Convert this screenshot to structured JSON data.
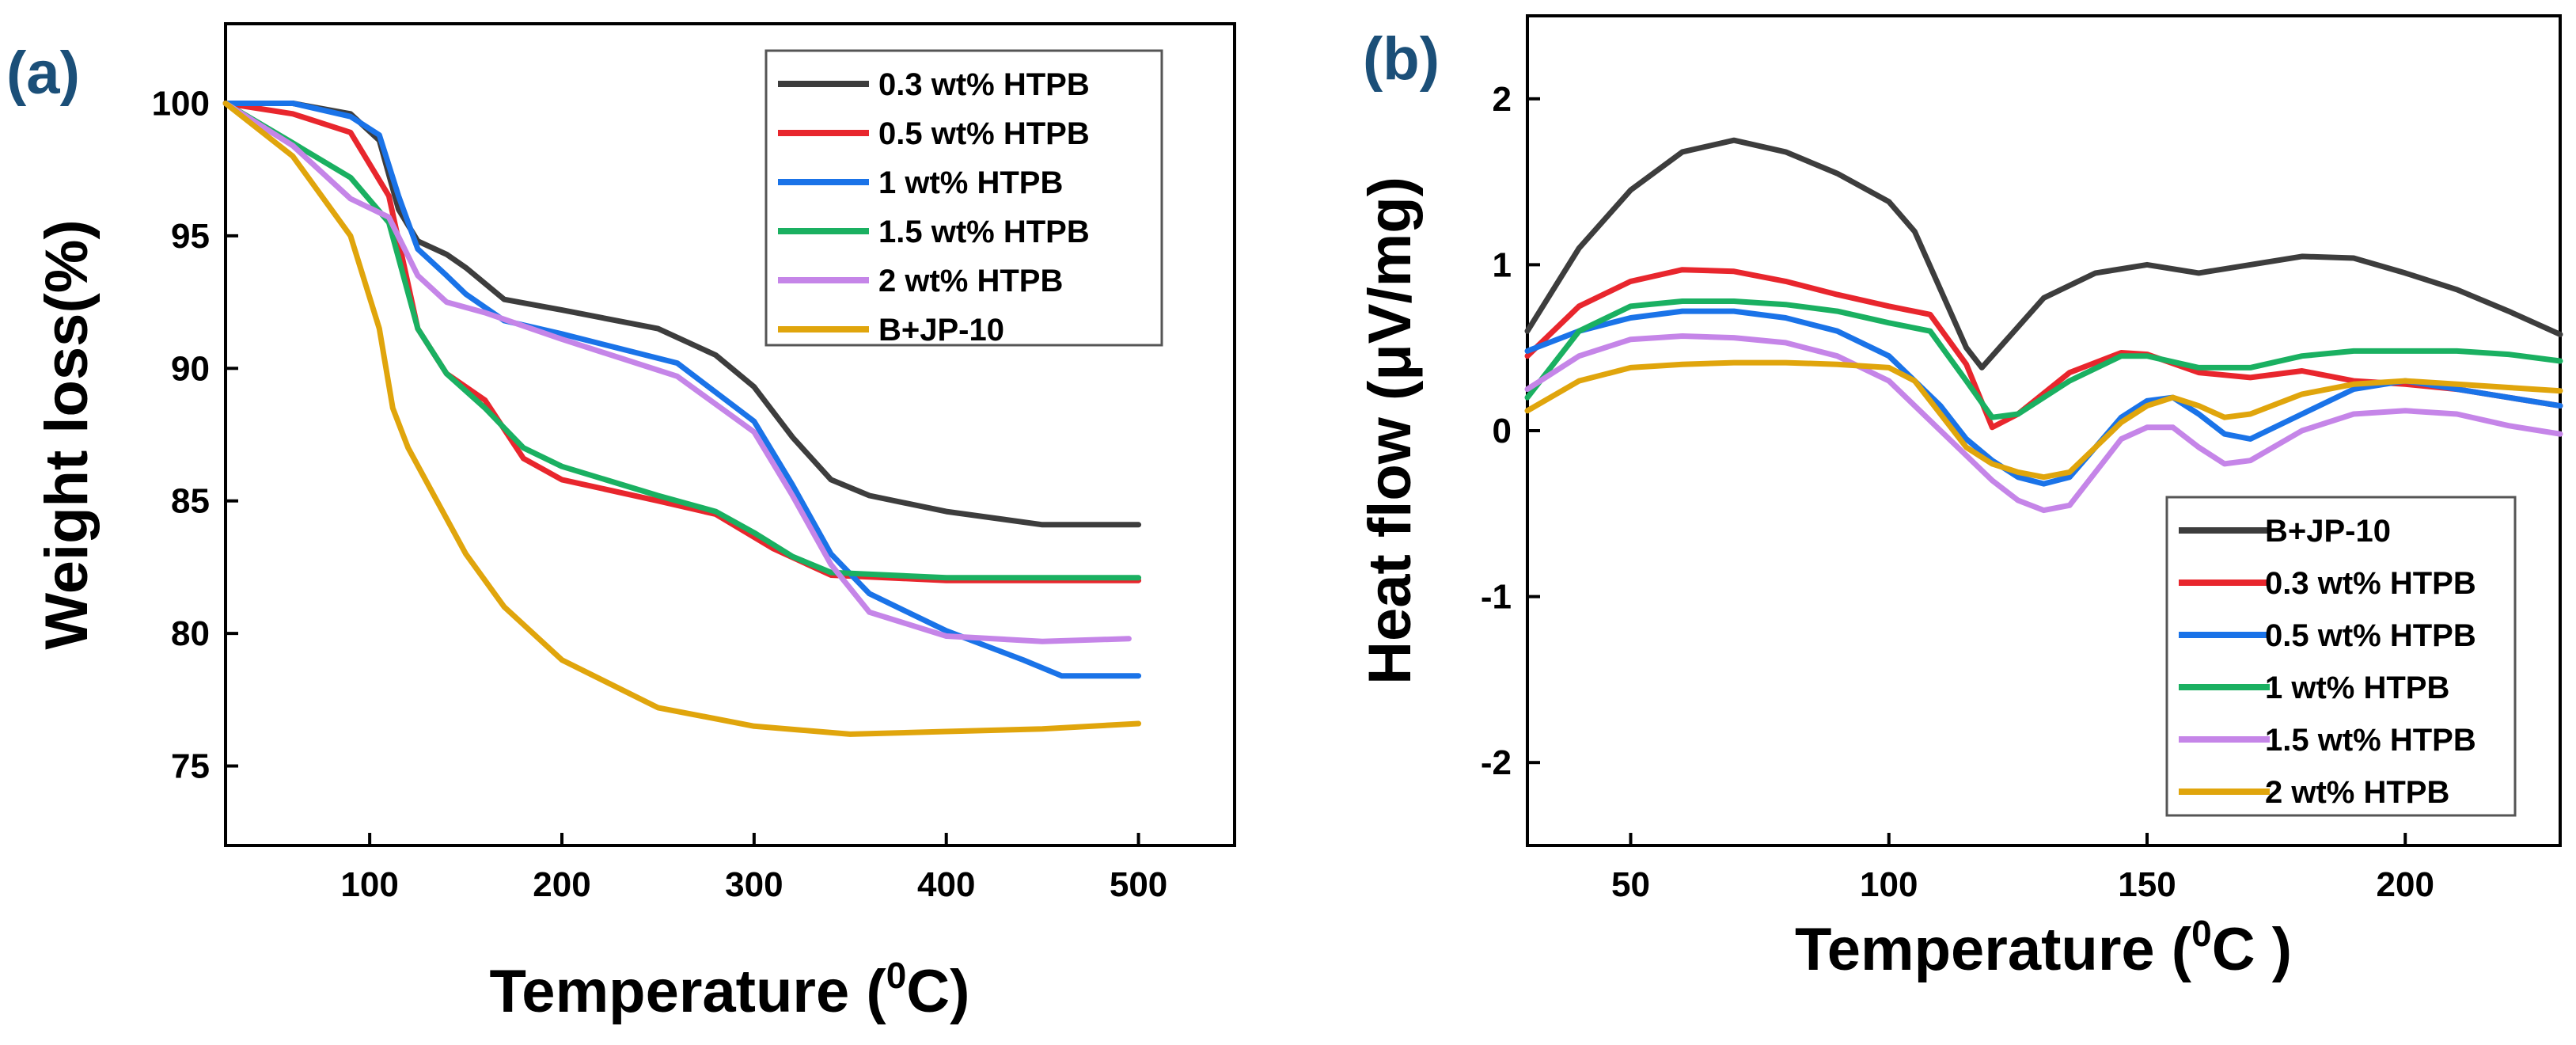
{
  "chart_data": [
    {
      "panel": "(a)",
      "type": "line",
      "xlabel_main": "Temperature (",
      "xlabel_sup": "0",
      "xlabel_end": "C)",
      "ylabel": "Weight loss(%)",
      "xlim": [
        25,
        550
      ],
      "ylim": [
        72,
        103
      ],
      "xticks": [
        100,
        200,
        300,
        400,
        500
      ],
      "yticks": [
        75,
        80,
        85,
        90,
        95,
        100
      ],
      "legend_position": "top-right",
      "series": [
        {
          "name": "0.3 wt% HTPB",
          "color": "#3d3d3d",
          "x": [
            25,
            60,
            90,
            105,
            115,
            125,
            140,
            150,
            170,
            200,
            250,
            280,
            300,
            320,
            340,
            360,
            400,
            450,
            500
          ],
          "y": [
            100,
            100,
            99.6,
            98.6,
            96,
            94.8,
            94.3,
            93.8,
            92.6,
            92.2,
            91.5,
            90.5,
            89.3,
            87.4,
            85.8,
            85.2,
            84.6,
            84.1,
            84.1
          ]
        },
        {
          "name": "0.5 wt% HTPB",
          "color": "#e8262d",
          "x": [
            25,
            60,
            90,
            110,
            125,
            140,
            160,
            180,
            200,
            250,
            280,
            310,
            340,
            400,
            450,
            500
          ],
          "y": [
            100,
            99.6,
            98.9,
            96.5,
            91.5,
            89.8,
            88.8,
            86.6,
            85.8,
            85,
            84.5,
            83.2,
            82.2,
            82,
            82,
            82
          ]
        },
        {
          "name": "1 wt% HTPB",
          "color": "#1a73e8",
          "x": [
            25,
            60,
            90,
            105,
            115,
            125,
            140,
            150,
            170,
            200,
            260,
            300,
            320,
            340,
            360,
            400,
            440,
            460,
            500
          ],
          "y": [
            100,
            100,
            99.5,
            98.8,
            96.5,
            94.5,
            93.5,
            92.8,
            91.8,
            91.3,
            90.2,
            88,
            85.6,
            83,
            81.5,
            80.1,
            79,
            78.4,
            78.4
          ]
        },
        {
          "name": "1.5 wt% HTPB",
          "color": "#1ab061",
          "x": [
            25,
            60,
            90,
            110,
            125,
            140,
            160,
            180,
            200,
            250,
            280,
            300,
            320,
            340,
            400,
            450,
            500
          ],
          "y": [
            100,
            98.5,
            97.2,
            95.5,
            91.5,
            89.8,
            88.5,
            87,
            86.3,
            85.2,
            84.6,
            83.8,
            82.9,
            82.3,
            82.1,
            82.1,
            82.1
          ]
        },
        {
          "name": "2 wt% HTPB",
          "color": "#c585e8",
          "x": [
            25,
            60,
            90,
            110,
            125,
            140,
            160,
            200,
            260,
            300,
            320,
            340,
            360,
            400,
            450,
            495
          ],
          "y": [
            100,
            98.4,
            96.4,
            95.7,
            93.5,
            92.5,
            92.1,
            91.1,
            89.7,
            87.6,
            85.2,
            82.6,
            80.8,
            79.9,
            79.7,
            79.8
          ]
        },
        {
          "name": "B+JP-10",
          "color": "#e0a50c",
          "x": [
            25,
            60,
            90,
            105,
            112,
            120,
            135,
            150,
            170,
            200,
            250,
            300,
            350,
            400,
            450,
            500
          ],
          "y": [
            100,
            98,
            95,
            91.5,
            88.5,
            87,
            85,
            83,
            81,
            79,
            77.2,
            76.5,
            76.2,
            76.3,
            76.4,
            76.6
          ]
        }
      ]
    },
    {
      "panel": "(b)",
      "type": "line",
      "xlabel_main": "Temperature (",
      "xlabel_sup": "0",
      "xlabel_end": "C )",
      "ylabel": "Heat flow (μV/mg)",
      "xlim": [
        30,
        230
      ],
      "ylim": [
        -2.5,
        2.5
      ],
      "xticks": [
        50,
        100,
        150,
        200
      ],
      "yticks": [
        -2,
        -1,
        0,
        1,
        2
      ],
      "legend_position": "bottom-right",
      "series": [
        {
          "name": "B+JP-10",
          "color": "#3d3d3d",
          "x": [
            30,
            40,
            50,
            60,
            70,
            80,
            90,
            100,
            105,
            110,
            115,
            118,
            122,
            130,
            140,
            150,
            160,
            170,
            180,
            190,
            200,
            210,
            220,
            230
          ],
          "y": [
            0.6,
            1.1,
            1.45,
            1.68,
            1.75,
            1.68,
            1.55,
            1.38,
            1.2,
            0.85,
            0.5,
            0.38,
            0.52,
            0.8,
            0.95,
            1.0,
            0.95,
            1.0,
            1.05,
            1.04,
            0.95,
            0.85,
            0.72,
            0.58
          ]
        },
        {
          "name": "0.3 wt% HTPB",
          "color": "#e8262d",
          "x": [
            30,
            40,
            50,
            60,
            70,
            80,
            90,
            100,
            108,
            115,
            120,
            125,
            135,
            145,
            150,
            160,
            170,
            180,
            190,
            200,
            210,
            220,
            230
          ],
          "y": [
            0.45,
            0.75,
            0.9,
            0.97,
            0.96,
            0.9,
            0.82,
            0.75,
            0.7,
            0.4,
            0.02,
            0.1,
            0.35,
            0.47,
            0.46,
            0.35,
            0.32,
            0.36,
            0.3,
            0.28,
            0.25,
            0.2,
            0.15
          ]
        },
        {
          "name": "0.5 wt% HTPB",
          "color": "#1a73e8",
          "x": [
            30,
            40,
            50,
            60,
            70,
            80,
            90,
            100,
            110,
            115,
            120,
            125,
            130,
            135,
            140,
            145,
            150,
            155,
            160,
            165,
            170,
            180,
            190,
            200,
            210,
            220,
            230
          ],
          "y": [
            0.48,
            0.6,
            0.68,
            0.72,
            0.72,
            0.68,
            0.6,
            0.45,
            0.15,
            -0.05,
            -0.18,
            -0.28,
            -0.32,
            -0.28,
            -0.1,
            0.08,
            0.18,
            0.2,
            0.1,
            -0.02,
            -0.05,
            0.1,
            0.25,
            0.3,
            0.25,
            0.2,
            0.15
          ]
        },
        {
          "name": "1 wt% HTPB",
          "color": "#1ab061",
          "x": [
            30,
            40,
            50,
            60,
            70,
            80,
            90,
            100,
            108,
            115,
            120,
            125,
            135,
            145,
            150,
            160,
            170,
            180,
            190,
            200,
            210,
            220,
            230
          ],
          "y": [
            0.2,
            0.6,
            0.75,
            0.78,
            0.78,
            0.76,
            0.72,
            0.65,
            0.6,
            0.3,
            0.08,
            0.1,
            0.3,
            0.45,
            0.45,
            0.38,
            0.38,
            0.45,
            0.48,
            0.48,
            0.48,
            0.46,
            0.42
          ]
        },
        {
          "name": "1.5 wt% HTPB",
          "color": "#c585e8",
          "x": [
            30,
            40,
            50,
            60,
            70,
            80,
            90,
            100,
            110,
            120,
            125,
            130,
            135,
            140,
            145,
            150,
            155,
            160,
            165,
            170,
            180,
            190,
            200,
            210,
            220,
            230
          ],
          "y": [
            0.25,
            0.45,
            0.55,
            0.57,
            0.56,
            0.53,
            0.45,
            0.3,
            0.0,
            -0.3,
            -0.42,
            -0.48,
            -0.45,
            -0.25,
            -0.05,
            0.02,
            0.02,
            -0.1,
            -0.2,
            -0.18,
            0.0,
            0.1,
            0.12,
            0.1,
            0.03,
            -0.02
          ]
        },
        {
          "name": "2 wt% HTPB",
          "color": "#e0a50c",
          "x": [
            30,
            40,
            50,
            60,
            70,
            80,
            90,
            100,
            105,
            110,
            115,
            120,
            125,
            130,
            135,
            140,
            145,
            150,
            155,
            160,
            165,
            170,
            180,
            190,
            200,
            210,
            220,
            230
          ],
          "y": [
            0.12,
            0.3,
            0.38,
            0.4,
            0.41,
            0.41,
            0.4,
            0.38,
            0.3,
            0.1,
            -0.1,
            -0.2,
            -0.25,
            -0.28,
            -0.25,
            -0.1,
            0.05,
            0.15,
            0.2,
            0.15,
            0.08,
            0.1,
            0.22,
            0.28,
            0.3,
            0.28,
            0.26,
            0.24
          ]
        }
      ]
    }
  ]
}
